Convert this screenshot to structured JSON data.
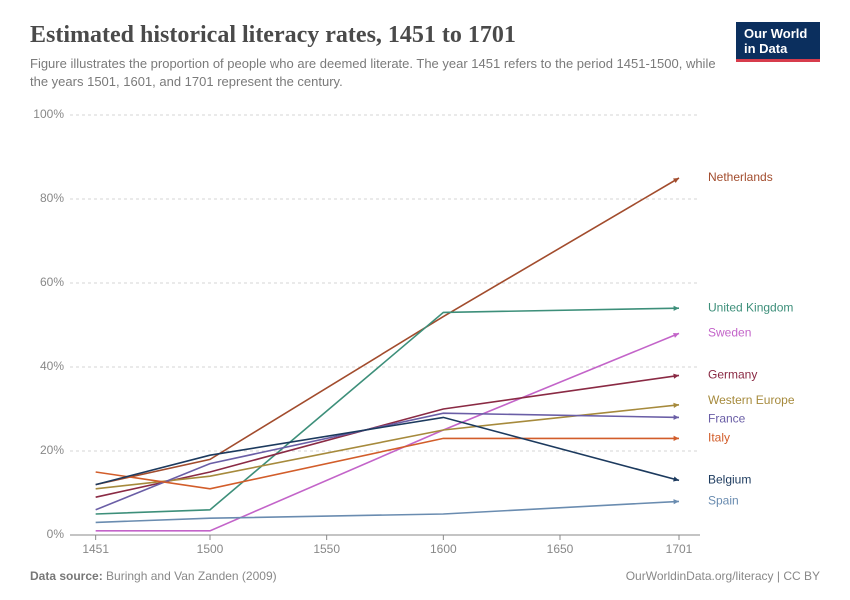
{
  "header": {
    "title": "Estimated historical literacy rates, 1451 to 1701",
    "subtitle": "Figure illustrates the proportion of people who are deemed literate. The year 1451 refers to the period 1451-1500, while the years 1501, 1601, and 1701 represent the century.",
    "logo_line1": "Our World",
    "logo_line2": "in Data"
  },
  "footer": {
    "source_label": "Data source:",
    "source_text": "Buringh and Van Zanden (2009)",
    "attribution": "OurWorldinData.org/literacy | CC BY"
  },
  "chart": {
    "type": "line",
    "background_color": "#ffffff",
    "grid_color": "#d5d5d5",
    "axis_color": "#888888",
    "tick_fontsize": 12,
    "label_fontsize": 12,
    "line_width": 1.6,
    "xlim": [
      1440,
      1710
    ],
    "ylim": [
      0,
      100
    ],
    "x_ticks": [
      1451,
      1500,
      1550,
      1600,
      1650,
      1701
    ],
    "y_ticks": [
      0,
      20,
      40,
      60,
      80,
      100
    ],
    "y_suffix": "%",
    "series": [
      {
        "name": "Netherlands",
        "color": "#a24c2d",
        "x": [
          1451,
          1500,
          1600,
          1701
        ],
        "y": [
          12,
          18,
          52,
          85
        ],
        "label_y": 85
      },
      {
        "name": "United Kingdom",
        "color": "#3d8f7a",
        "x": [
          1451,
          1500,
          1600,
          1701
        ],
        "y": [
          5,
          6,
          53,
          54
        ],
        "label_y": 54
      },
      {
        "name": "Sweden",
        "color": "#c364c9",
        "x": [
          1451,
          1500,
          1600,
          1701
        ],
        "y": [
          1,
          1,
          25,
          48
        ],
        "label_y": 48
      },
      {
        "name": "Germany",
        "color": "#8a2a44",
        "x": [
          1451,
          1500,
          1600,
          1701
        ],
        "y": [
          9,
          15,
          30,
          38
        ],
        "label_y": 38
      },
      {
        "name": "Western Europe",
        "color": "#a68a3c",
        "x": [
          1451,
          1500,
          1600,
          1701
        ],
        "y": [
          11,
          14,
          25,
          31
        ],
        "label_y": 32
      },
      {
        "name": "France",
        "color": "#6a5ea6",
        "x": [
          1451,
          1500,
          1600,
          1701
        ],
        "y": [
          6,
          17,
          29,
          28
        ],
        "label_y": 27.5
      },
      {
        "name": "Italy",
        "color": "#d25d2a",
        "x": [
          1451,
          1500,
          1600,
          1701
        ],
        "y": [
          15,
          11,
          23,
          23
        ],
        "label_y": 23
      },
      {
        "name": "Belgium",
        "color": "#1c3a5e",
        "x": [
          1451,
          1500,
          1600,
          1701
        ],
        "y": [
          12,
          19,
          28,
          13
        ],
        "label_y": 13
      },
      {
        "name": "Spain",
        "color": "#6a8cb0",
        "x": [
          1451,
          1500,
          1600,
          1701
        ],
        "y": [
          3,
          4,
          5,
          8
        ],
        "label_y": 8
      }
    ]
  }
}
